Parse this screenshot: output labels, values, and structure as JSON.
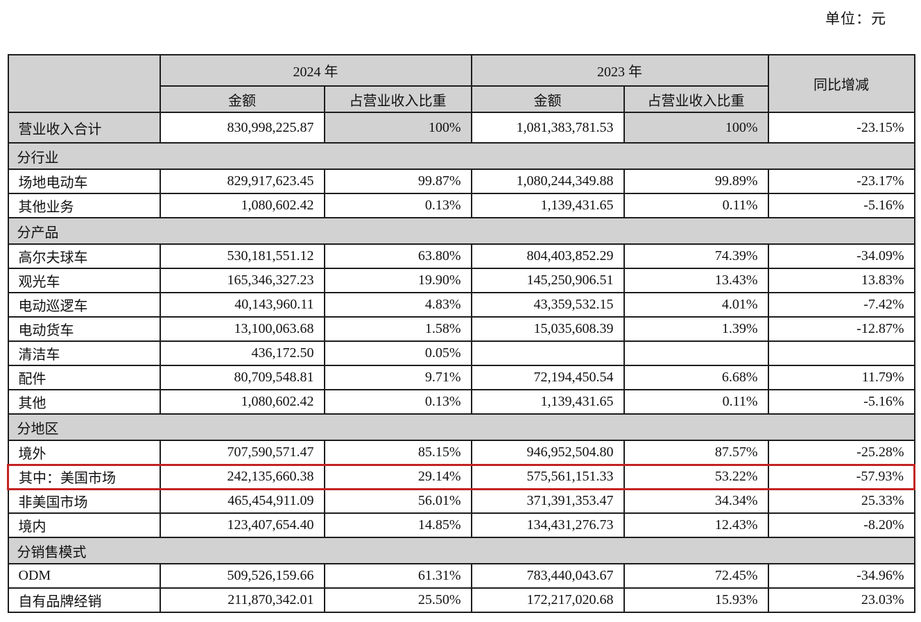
{
  "unit_label": "单位：元",
  "colors": {
    "band_gray": "#d2d2d2",
    "highlight_red": "#c32222",
    "border_black": "#1d1d1d"
  },
  "table": {
    "headers": {
      "year_2024": "2024 年",
      "year_2023": "2023 年",
      "amount": "金额",
      "share": "占营业收入比重",
      "yoy": "同比增减"
    },
    "rows": [
      {
        "type": "data",
        "first": true,
        "shade_label": true,
        "shade_pct": true,
        "label": "营业收入合计",
        "a2024": "830,998,225.87",
        "p2024": "100%",
        "a2023": "1,081,383,781.53",
        "p2023": "100%",
        "yoy": "-23.15%"
      },
      {
        "type": "section",
        "label": "分行业"
      },
      {
        "type": "data",
        "label": "场地电动车",
        "a2024": "829,917,623.45",
        "p2024": "99.87%",
        "a2023": "1,080,244,349.88",
        "p2023": "99.89%",
        "yoy": "-23.17%"
      },
      {
        "type": "data",
        "label": "其他业务",
        "a2024": "1,080,602.42",
        "p2024": "0.13%",
        "a2023": "1,139,431.65",
        "p2023": "0.11%",
        "yoy": "-5.16%"
      },
      {
        "type": "section",
        "label": "分产品"
      },
      {
        "type": "data",
        "label": "高尔夫球车",
        "a2024": "530,181,551.12",
        "p2024": "63.80%",
        "a2023": "804,403,852.29",
        "p2023": "74.39%",
        "yoy": "-34.09%"
      },
      {
        "type": "data",
        "label": "观光车",
        "a2024": "165,346,327.23",
        "p2024": "19.90%",
        "a2023": "145,250,906.51",
        "p2023": "13.43%",
        "yoy": "13.83%"
      },
      {
        "type": "data",
        "label": "电动巡逻车",
        "a2024": "40,143,960.11",
        "p2024": "4.83%",
        "a2023": "43,359,532.15",
        "p2023": "4.01%",
        "yoy": "-7.42%"
      },
      {
        "type": "data",
        "label": "电动货车",
        "a2024": "13,100,063.68",
        "p2024": "1.58%",
        "a2023": "15,035,608.39",
        "p2023": "1.39%",
        "yoy": "-12.87%"
      },
      {
        "type": "data",
        "label": "清洁车",
        "a2024": "436,172.50",
        "p2024": "0.05%",
        "a2023": "",
        "p2023": "",
        "yoy": ""
      },
      {
        "type": "data",
        "label": "配件",
        "a2024": "80,709,548.81",
        "p2024": "9.71%",
        "a2023": "72,194,450.54",
        "p2023": "6.68%",
        "yoy": "11.79%"
      },
      {
        "type": "data",
        "label": "其他",
        "a2024": "1,080,602.42",
        "p2024": "0.13%",
        "a2023": "1,139,431.65",
        "p2023": "0.11%",
        "yoy": "-5.16%"
      },
      {
        "type": "section",
        "label": "分地区"
      },
      {
        "type": "data",
        "label": "境外",
        "a2024": "707,590,571.47",
        "p2024": "85.15%",
        "a2023": "946,952,504.80",
        "p2023": "87.57%",
        "yoy": "-25.28%"
      },
      {
        "type": "data",
        "highlight": true,
        "label": "其中：美国市场",
        "a2024": "242,135,660.38",
        "p2024": "29.14%",
        "a2023": "575,561,151.33",
        "p2023": "53.22%",
        "yoy": "-57.93%"
      },
      {
        "type": "data",
        "indent": true,
        "label": "非美国市场",
        "a2024": "465,454,911.09",
        "p2024": "56.01%",
        "a2023": "371,391,353.47",
        "p2023": "34.34%",
        "yoy": "25.33%"
      },
      {
        "type": "data",
        "label": "境内",
        "a2024": "123,407,654.40",
        "p2024": "14.85%",
        "a2023": "134,431,276.73",
        "p2023": "12.43%",
        "yoy": "-8.20%"
      },
      {
        "type": "section",
        "label": "分销售模式"
      },
      {
        "type": "data",
        "label": "ODM",
        "a2024": "509,526,159.66",
        "p2024": "61.31%",
        "a2023": "783,440,043.67",
        "p2023": "72.45%",
        "yoy": "-34.96%"
      },
      {
        "type": "data",
        "label": "自有品牌经销",
        "a2024": "211,870,342.01",
        "p2024": "25.50%",
        "a2023": "172,217,020.68",
        "p2023": "15.93%",
        "yoy": "23.03%"
      }
    ]
  }
}
